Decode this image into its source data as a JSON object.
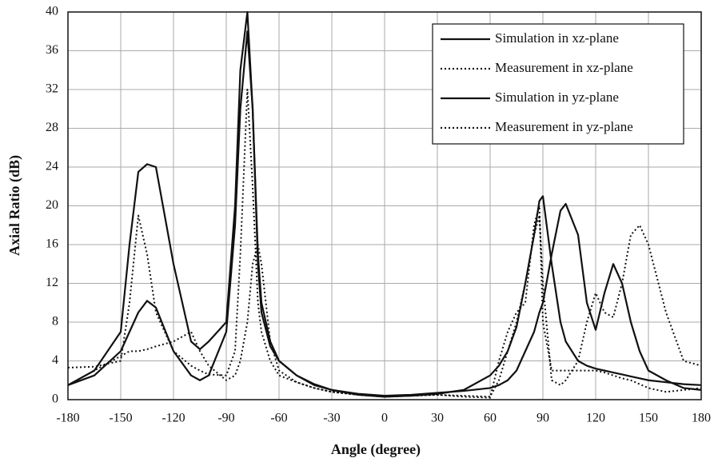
{
  "chart_data": {
    "type": "line",
    "xlabel": "Angle (degree)",
    "ylabel": "Axial Ratio (dB)",
    "x": [
      -180,
      -165,
      -150,
      -145,
      -140,
      -135,
      -130,
      -120,
      -110,
      -105,
      -100,
      -90,
      -85,
      -82,
      -78,
      -75,
      -72,
      -70,
      -65,
      -60,
      -50,
      -40,
      -30,
      -15,
      0,
      15,
      30,
      45,
      60,
      65,
      70,
      75,
      80,
      85,
      88,
      90,
      95,
      100,
      103,
      110,
      115,
      120,
      125,
      130,
      135,
      140,
      145,
      150,
      160,
      170,
      180
    ],
    "series": [
      {
        "name": "Simulation in xz-plane",
        "color": "#111111",
        "style": "solid",
        "values": [
          1.5,
          3,
          7,
          16,
          23.5,
          24.3,
          24,
          14,
          6,
          5.2,
          6,
          8,
          20,
          34,
          40,
          30,
          14,
          9,
          5.5,
          4,
          2.5,
          1.6,
          1,
          0.5,
          0.3,
          0.4,
          0.6,
          1,
          2.5,
          3.5,
          5,
          7.5,
          12,
          17,
          20.5,
          21,
          14,
          8,
          6,
          4,
          3.5,
          3.2,
          3,
          2.8,
          2.6,
          2.4,
          2.2,
          2,
          1.8,
          1.6,
          1.5
        ]
      },
      {
        "name": "Measurement in xz-plane",
        "color": "#111111",
        "style": "dotted",
        "values": [
          3.3,
          3.4,
          4,
          10,
          19,
          15,
          9,
          5,
          3.5,
          3,
          2.6,
          2.5,
          5,
          15,
          32,
          22,
          10,
          7,
          4,
          2.5,
          1.8,
          1.2,
          0.8,
          0.5,
          0.3,
          0.4,
          0.5,
          0.4,
          0.3,
          2,
          5,
          8,
          12,
          17,
          19,
          12,
          2,
          1.5,
          2,
          4,
          8,
          11,
          9,
          8.5,
          12,
          17,
          18,
          16,
          9,
          4,
          3.5
        ]
      },
      {
        "name": "Simulation in yz-plane",
        "color": "#111111",
        "style": "solid",
        "values": [
          1.5,
          2.5,
          5,
          7,
          9,
          10.2,
          9.5,
          5,
          2.5,
          2,
          2.5,
          7,
          18,
          30,
          38,
          30,
          15,
          10,
          6,
          4,
          2.5,
          1.5,
          1,
          0.6,
          0.4,
          0.5,
          0.7,
          0.9,
          1.2,
          1.5,
          2,
          3,
          5,
          7,
          9,
          10,
          15,
          19.5,
          20.2,
          17,
          10,
          7.2,
          11,
          14,
          12,
          8,
          5,
          3,
          2,
          1.2,
          1
        ]
      },
      {
        "name": "Measurement in yz-plane",
        "color": "#111111",
        "style": "dotted",
        "values": [
          1.5,
          3,
          4.5,
          5,
          5,
          5.2,
          5.5,
          6,
          7,
          5,
          3.5,
          2,
          2.5,
          4,
          8,
          14,
          16,
          14,
          6,
          3,
          1.8,
          1.2,
          0.8,
          0.5,
          0.3,
          0.4,
          0.5,
          0.3,
          0.2,
          4,
          7,
          9,
          10,
          18,
          20,
          8,
          3,
          3,
          3,
          3,
          3,
          3,
          2.8,
          2.5,
          2.2,
          2,
          1.6,
          1.2,
          0.8,
          1,
          1.2
        ]
      }
    ],
    "xlim": [
      -180,
      180
    ],
    "xticks": [
      -180,
      -150,
      -120,
      -90,
      -60,
      -30,
      0,
      30,
      60,
      90,
      120,
      150,
      180
    ],
    "ylim": [
      0,
      40
    ],
    "yticks": [
      0,
      4,
      8,
      12,
      16,
      20,
      24,
      28,
      32,
      36,
      40
    ],
    "grid": true,
    "legend": "top-right"
  }
}
